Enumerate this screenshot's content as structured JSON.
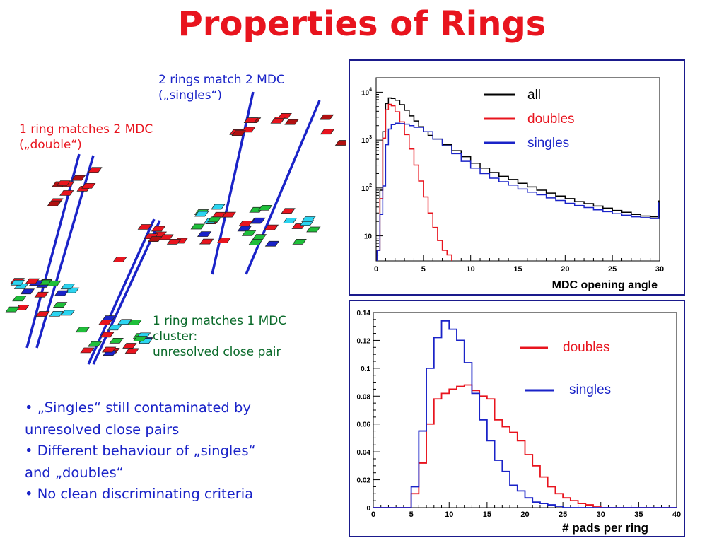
{
  "title": "Properties of Rings",
  "annotations": {
    "rings_match_line1": "2 rings match 2 MDC",
    "rings_match_line2": "(„singles“)",
    "ring_matches_2_line1": "1 ring matches 2 MDC",
    "ring_matches_2_line2": "(„double“)",
    "ring_matches_1_line1": "1 ring matches 1 MDC",
    "ring_matches_1_line2": "cluster:",
    "ring_matches_1_line3": "unresolved close pair"
  },
  "bullets": {
    "b1_line1": "• „Singles“ still contaminated by",
    "b1_line2": "unresolved close pairs",
    "b2_line1": "• Different behaviour of „singles“",
    "b2_line2": "and „doubles“",
    "b3_line1": "• No clean discriminating criteria"
  },
  "colors": {
    "title": "#e8141e",
    "all": "#000000",
    "doubles": "#e8141e",
    "singles": "#1a23c8",
    "frame": "#1a1a8c",
    "annotation_green": "#0a6a2a"
  },
  "chart_data": [
    {
      "type": "line",
      "xlabel": "MDC opening angle",
      "ylabel": "",
      "log_y": true,
      "xlim": [
        0,
        30
      ],
      "ylim": [
        3,
        20000
      ],
      "x_ticks": [
        "0",
        "5",
        "10",
        "15",
        "20",
        "25",
        "30"
      ],
      "y_ticks": [
        {
          "value": 10,
          "base": "10",
          "exp": ""
        },
        {
          "value": 100,
          "base": "10",
          "exp": "2"
        },
        {
          "value": 1000,
          "base": "10",
          "exp": "3"
        },
        {
          "value": 10000,
          "base": "10",
          "exp": "4"
        }
      ],
      "legend_position": "top-right",
      "series": [
        {
          "name": "all",
          "color": "#000000",
          "x": [
            0.1,
            0.4,
            0.7,
            1.0,
            1.3,
            1.6,
            2.0,
            2.5,
            3.0,
            3.5,
            4.0,
            4.5,
            5.0,
            5.5,
            6.0,
            7.0,
            8.0,
            9.0,
            10,
            11,
            12,
            13,
            14,
            15,
            16,
            17,
            18,
            19,
            20,
            21,
            22,
            23,
            24,
            25,
            26,
            27,
            28,
            29,
            29.9
          ],
          "y": [
            5,
            90,
            1500,
            5800,
            7600,
            7400,
            6800,
            5500,
            4200,
            3200,
            2500,
            1900,
            1500,
            1250,
            1050,
            800,
            600,
            450,
            330,
            260,
            210,
            175,
            150,
            125,
            105,
            90,
            78,
            68,
            60,
            52,
            47,
            42,
            38,
            34,
            31,
            28,
            26,
            25,
            55
          ]
        },
        {
          "name": "doubles",
          "color": "#e8141e",
          "x": [
            0.1,
            0.4,
            0.7,
            1.0,
            1.3,
            1.6,
            2.0,
            2.5,
            3.0,
            3.5,
            4.0,
            4.5,
            5.0,
            5.5,
            6.0,
            6.5,
            7.0,
            7.5,
            8.0
          ],
          "y": [
            5,
            60,
            1100,
            4300,
            5600,
            5200,
            3900,
            2400,
            1300,
            650,
            300,
            140,
            65,
            30,
            15,
            8,
            5,
            4,
            3
          ]
        },
        {
          "name": "singles",
          "color": "#1a23c8",
          "x": [
            0.1,
            0.4,
            0.7,
            1.0,
            1.3,
            1.6,
            2.0,
            2.5,
            3.0,
            3.5,
            4.0,
            5.0,
            6.0,
            7.0,
            8.0,
            9.0,
            10,
            11,
            12,
            13,
            14,
            15,
            16,
            17,
            18,
            19,
            20,
            21,
            22,
            23,
            24,
            25,
            26,
            27,
            28,
            29,
            29.9
          ],
          "y": [
            5,
            28,
            110,
            800,
            1700,
            2100,
            2250,
            2200,
            2150,
            2000,
            1850,
            1500,
            1050,
            760,
            520,
            360,
            260,
            200,
            160,
            135,
            115,
            95,
            82,
            72,
            62,
            55,
            48,
            43,
            39,
            35,
            32,
            29,
            27,
            25,
            24,
            23,
            50
          ]
        }
      ]
    },
    {
      "type": "line",
      "xlabel": "# pads per ring",
      "ylabel": "",
      "xlim": [
        0,
        40
      ],
      "ylim": [
        0,
        0.14
      ],
      "x_ticks": [
        "0",
        "5",
        "10",
        "15",
        "20",
        "25",
        "30",
        "35",
        "40"
      ],
      "y_ticks": [
        "0",
        "0.02",
        "0.04",
        "0.06",
        "0.08",
        "0.1",
        "0.12",
        "0.14"
      ],
      "legend_position": "top-right",
      "bins": {
        "edges": [
          5,
          6,
          7,
          8,
          9,
          10,
          11,
          12,
          13,
          14,
          15,
          16,
          17,
          18,
          19,
          20,
          21,
          22,
          23,
          24,
          25,
          26,
          27,
          28,
          29,
          30
        ],
        "doubles": [
          0.01,
          0.032,
          0.06,
          0.078,
          0.082,
          0.085,
          0.087,
          0.088,
          0.084,
          0.08,
          0.078,
          0.063,
          0.058,
          0.054,
          0.048,
          0.038,
          0.03,
          0.022,
          0.015,
          0.01,
          0.007,
          0.005,
          0.003,
          0.002,
          0.001
        ],
        "singles": [
          0.015,
          0.055,
          0.1,
          0.122,
          0.134,
          0.128,
          0.12,
          0.104,
          0.082,
          0.063,
          0.048,
          0.034,
          0.026,
          0.016,
          0.012,
          0.007,
          0.004,
          0.003,
          0.002,
          0.001,
          0.0,
          0.0,
          0.0,
          0.0,
          0.0
        ]
      },
      "series": [
        {
          "name": "doubles",
          "color": "#e8141e"
        },
        {
          "name": "singles",
          "color": "#1a23c8"
        }
      ]
    }
  ]
}
